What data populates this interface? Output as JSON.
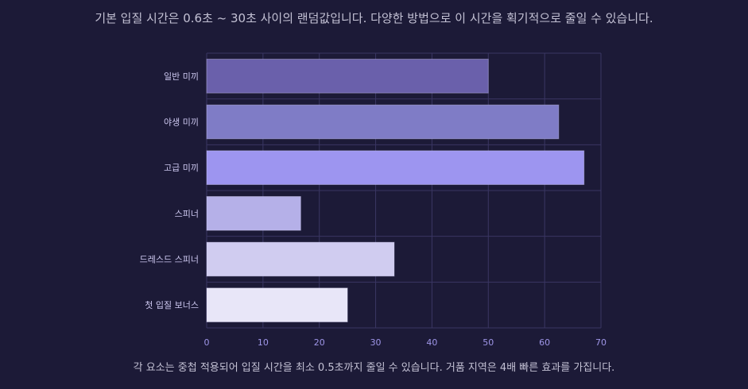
{
  "header": {
    "note": "기본 입질 시간은 0.6초 ~ 30초 사이의 랜덤값입니다. 다양한 방법으로 이 시간을 획기적으로 줄일 수 있습니다."
  },
  "footer": {
    "note": "각 요소는 중첩 적용되어 입질 시간을 최소 0.5초까지 줄일 수 있습니다. 거품 지역은 4배 빠른 효과를 가집니다."
  },
  "colors": {
    "background": "#1c1a37",
    "grid": "#3a3663",
    "tick": "#9f96e8",
    "bars": [
      "#6a60ab",
      "#7f7cc6",
      "#9d95f0",
      "#b5b0e8",
      "#d0ccf0",
      "#e8e6f8"
    ]
  },
  "chart_data": {
    "type": "bar",
    "orientation": "horizontal",
    "categories": [
      "일반 미끼",
      "야생 미끼",
      "고급 미끼",
      "스피너",
      "드레스드 스피너",
      "첫 입질 보너스"
    ],
    "values": [
      50,
      62.5,
      67,
      16.7,
      33.3,
      25
    ],
    "xlim": [
      0,
      70
    ],
    "xticks": [
      "0",
      "10",
      "20",
      "30",
      "40",
      "50",
      "60",
      "70"
    ],
    "xlabel": "",
    "ylabel": "",
    "grid": true
  }
}
